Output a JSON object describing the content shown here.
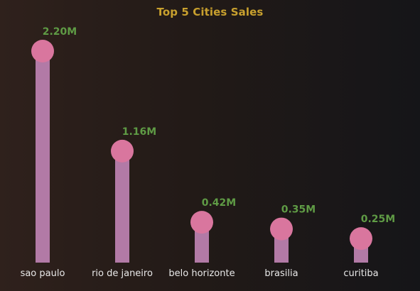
{
  "chart_data": {
    "type": "bar",
    "subtype": "lollipop",
    "title": "Top 5 Cities Sales",
    "xlabel": "",
    "ylabel": "",
    "categories": [
      "sao paulo",
      "rio de janeiro",
      "belo horizonte",
      "brasilia",
      "curitiba"
    ],
    "values": [
      2.2,
      1.16,
      0.42,
      0.35,
      0.25
    ],
    "value_labels": [
      "2.20M",
      "1.16M",
      "0.42M",
      "0.35M",
      "0.25M"
    ],
    "unit": "M",
    "ylim": [
      0,
      2.2
    ],
    "grid": false,
    "legend": "none",
    "colors": {
      "title": "#c8a02e",
      "stem": "#b27aa6",
      "head": "#d9769e",
      "value_label": "#5f9b45",
      "category_label": "#e8e8e8"
    }
  }
}
